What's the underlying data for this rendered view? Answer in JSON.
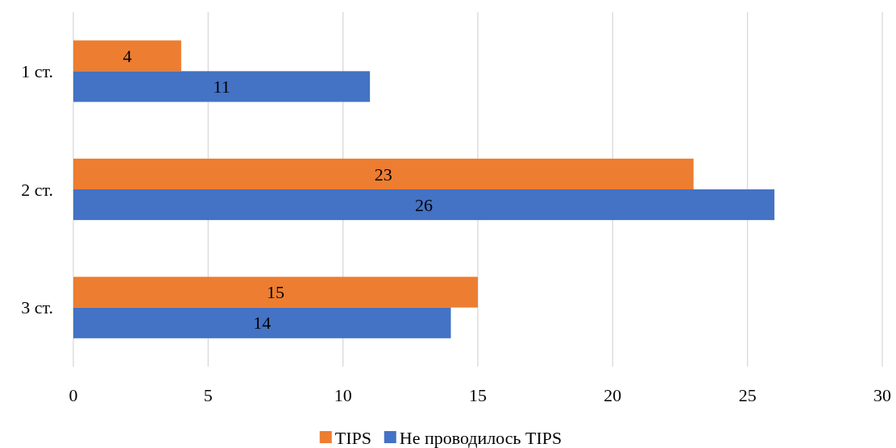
{
  "chart_data": {
    "type": "bar",
    "orientation": "horizontal",
    "categories": [
      "1 ст.",
      "2 ст.",
      "3 ст."
    ],
    "series": [
      {
        "name": "TIPS",
        "color": "#ed7d31",
        "values": [
          4,
          23,
          15
        ]
      },
      {
        "name": "Не проводилось TIPS",
        "color": "#4472c4",
        "values": [
          11,
          26,
          14
        ]
      }
    ],
    "xlim": [
      0,
      30
    ],
    "xticks": [
      0,
      5,
      10,
      15,
      20,
      25,
      30
    ],
    "grid": "x",
    "legend": "bottom",
    "data_labels": true
  }
}
